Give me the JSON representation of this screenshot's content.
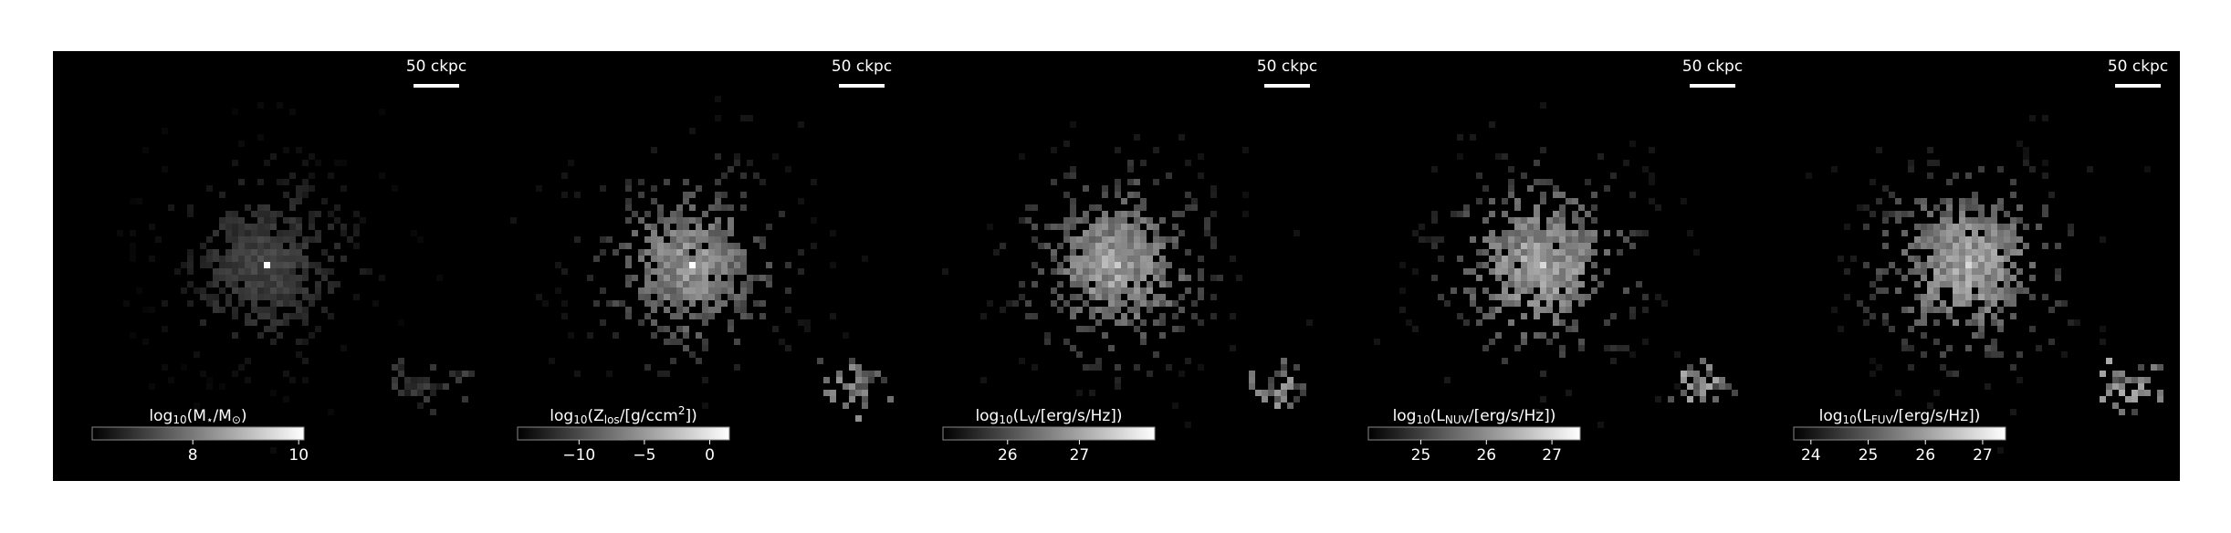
{
  "panels": [
    {
      "scale_label": "50 ckpc",
      "colorbar_label": [
        {
          "t": "log"
        },
        {
          "t": "10",
          "sub": true
        },
        {
          "t": "(M"
        },
        {
          "t": "⋆",
          "sub": true
        },
        {
          "t": "/M"
        },
        {
          "t": "⊙",
          "sub": true
        },
        {
          "t": ")"
        }
      ],
      "clim": [
        6.1,
        10.1
      ],
      "ticks": [
        8,
        10
      ]
    },
    {
      "scale_label": "50 ckpc",
      "colorbar_label": [
        {
          "t": "log"
        },
        {
          "t": "10",
          "sub": true
        },
        {
          "t": "(Z"
        },
        {
          "t": "los",
          "sub": true
        },
        {
          "t": "/[g/ccm"
        },
        {
          "t": "2",
          "sup": true
        },
        {
          "t": "])"
        }
      ],
      "clim": [
        -14.7,
        1.5
      ],
      "ticks": [
        {
          "value": -10,
          "label": "−10"
        },
        {
          "value": -5,
          "label": "−5"
        },
        0
      ]
    },
    {
      "scale_label": "50 ckpc",
      "colorbar_label": [
        {
          "t": "log"
        },
        {
          "t": "10",
          "sub": true
        },
        {
          "t": "(L"
        },
        {
          "t": "V",
          "sub": true
        },
        {
          "t": "/[erg/s/Hz])"
        }
      ],
      "clim": [
        25.1,
        28.05
      ],
      "ticks": [
        26,
        27
      ]
    },
    {
      "scale_label": "50 ckpc",
      "colorbar_label": [
        {
          "t": "log"
        },
        {
          "t": "10",
          "sub": true
        },
        {
          "t": "(L"
        },
        {
          "t": "NUV",
          "sub": true
        },
        {
          "t": "/[erg/s/Hz])"
        }
      ],
      "clim": [
        24.2,
        27.43
      ],
      "ticks": [
        25,
        26,
        27
      ]
    },
    {
      "scale_label": "50 ckpc",
      "colorbar_label": [
        {
          "t": "log"
        },
        {
          "t": "10",
          "sub": true
        },
        {
          "t": "(L"
        },
        {
          "t": "FUV",
          "sub": true
        },
        {
          "t": "/[erg/s/Hz])"
        }
      ],
      "clim": [
        23.7,
        27.4
      ],
      "ticks": [
        24,
        25,
        26,
        27
      ]
    }
  ]
}
